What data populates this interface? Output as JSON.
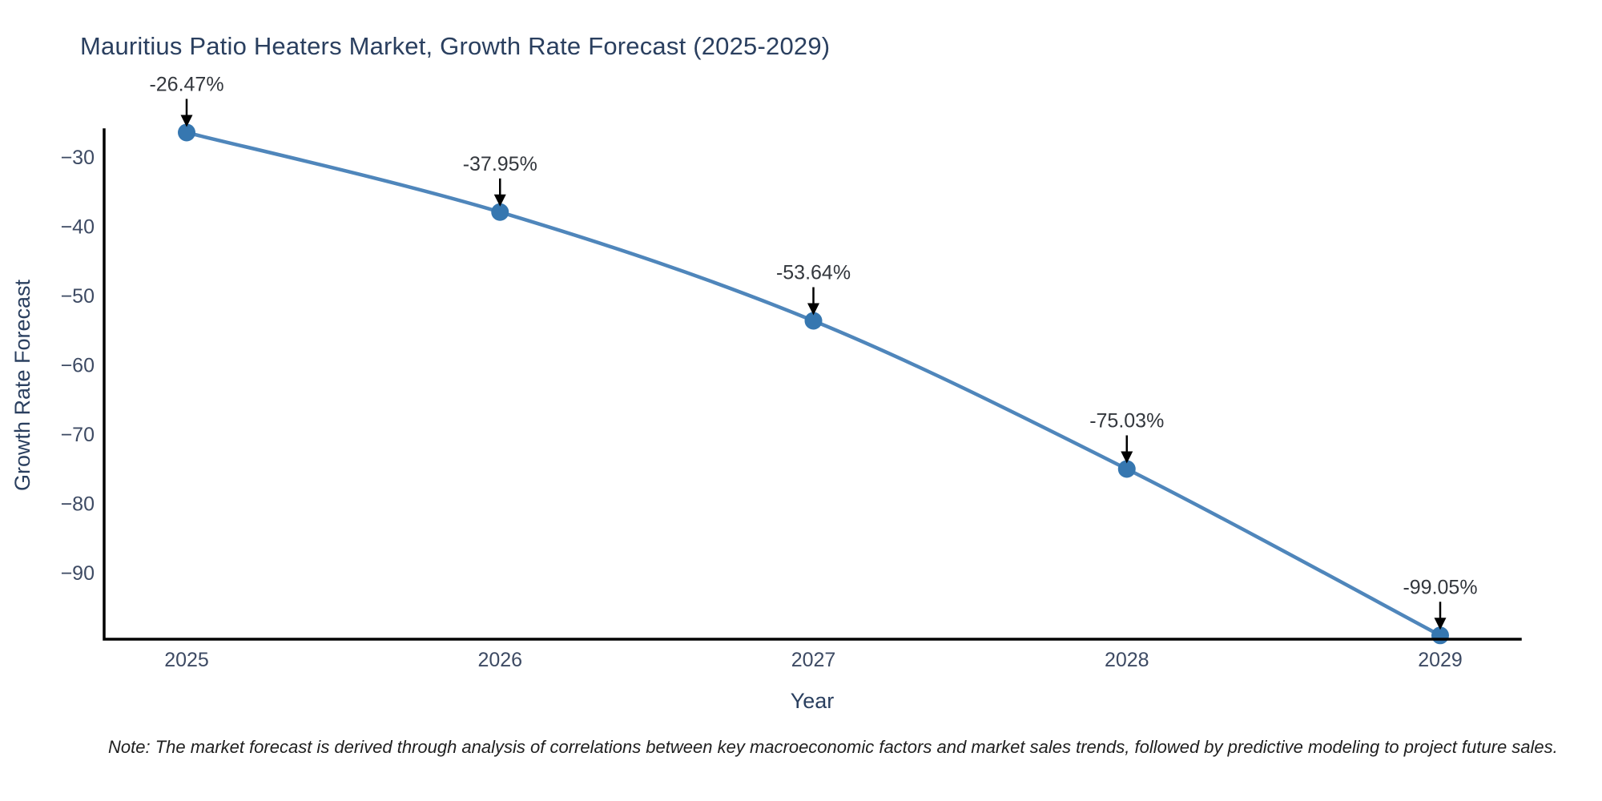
{
  "chart_data": {
    "type": "line",
    "title": "Mauritius Patio Heaters Market, Growth Rate Forecast (2025-2029)",
    "xlabel": "Year",
    "ylabel": "Growth Rate Forecast",
    "categories": [
      "2025",
      "2026",
      "2027",
      "2028",
      "2029"
    ],
    "values": [
      -26.47,
      -37.95,
      -53.64,
      -75.03,
      -99.05
    ],
    "point_labels": [
      "-26.47%",
      "-37.95%",
      "-53.64%",
      "-75.03%",
      "-99.05%"
    ],
    "yticks": [
      -30,
      -40,
      -50,
      -60,
      -70,
      -80,
      -90
    ],
    "ylim": [
      -99.6,
      -26.0
    ],
    "grid": false,
    "legend": "none",
    "line_shape": "spline",
    "line_color": "#4f86bb",
    "marker_color": "#3677b0",
    "arrow_color": "#000000",
    "axis_color": "#000000",
    "title_color": "#2a3f5f",
    "tick_color": "#3d4a63",
    "annotation_color": "#33373d"
  },
  "note": "Note: The market forecast is derived through analysis of correlations between key macroeconomic factors and market sales trends, followed by predictive modeling to project future sales."
}
